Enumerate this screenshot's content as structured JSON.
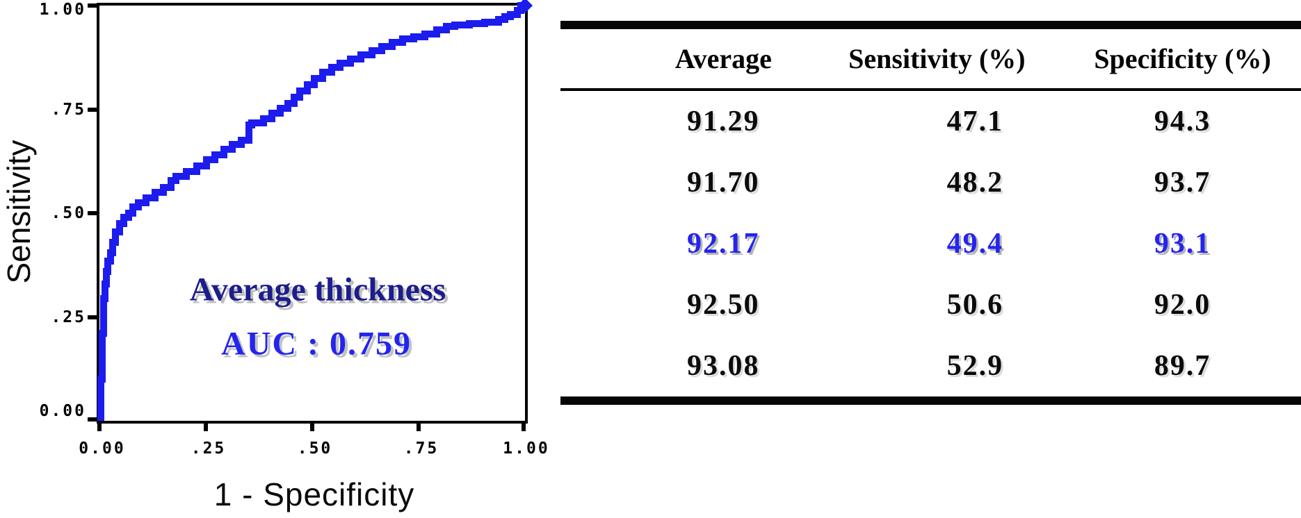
{
  "figure": {
    "background": "#ffffff"
  },
  "colors": {
    "curve": "#1c1cee",
    "annotation_title": "#1d1d8c",
    "annotation_auc": "#2424ef",
    "highlight_row": "#2424ee",
    "axis": "#000000",
    "table_text": "#0b0b0b"
  },
  "chart_data": {
    "type": "line",
    "subtype": "roc-curve",
    "title": "",
    "xlabel": "1 - Specificity",
    "ylabel": "Sensitivity",
    "xlim": [
      0,
      1
    ],
    "ylim": [
      0,
      1
    ],
    "grid": false,
    "legend": "none",
    "x_ticks": [
      "0.00",
      ".25",
      ".50",
      ".75",
      "1.00"
    ],
    "y_ticks": [
      "1.00",
      ".75",
      ".50",
      ".25",
      "0.00"
    ],
    "annotation": {
      "line1": "Average thickness",
      "line2": "AUC : 0.759",
      "auc": 0.759
    },
    "series": [
      {
        "name": "Average thickness ROC curve",
        "color": "#1c1cee",
        "points": [
          [
            0.004,
            0.0
          ],
          [
            0.004,
            0.06
          ],
          [
            0.007,
            0.1
          ],
          [
            0.007,
            0.16
          ],
          [
            0.01,
            0.21
          ],
          [
            0.01,
            0.26
          ],
          [
            0.013,
            0.295
          ],
          [
            0.016,
            0.33
          ],
          [
            0.02,
            0.36
          ],
          [
            0.026,
            0.385
          ],
          [
            0.031,
            0.405
          ],
          [
            0.038,
            0.43
          ],
          [
            0.048,
            0.455
          ],
          [
            0.058,
            0.475
          ],
          [
            0.068,
            0.49
          ],
          [
            0.078,
            0.5
          ],
          [
            0.092,
            0.515
          ],
          [
            0.11,
            0.525
          ],
          [
            0.13,
            0.537
          ],
          [
            0.15,
            0.55
          ],
          [
            0.168,
            0.562
          ],
          [
            0.18,
            0.578
          ],
          [
            0.205,
            0.588
          ],
          [
            0.228,
            0.6
          ],
          [
            0.252,
            0.614
          ],
          [
            0.272,
            0.628
          ],
          [
            0.292,
            0.641
          ],
          [
            0.312,
            0.654
          ],
          [
            0.333,
            0.665
          ],
          [
            0.352,
            0.675
          ],
          [
            0.358,
            0.712
          ],
          [
            0.385,
            0.718
          ],
          [
            0.405,
            0.728
          ],
          [
            0.425,
            0.74
          ],
          [
            0.443,
            0.752
          ],
          [
            0.458,
            0.765
          ],
          [
            0.47,
            0.78
          ],
          [
            0.488,
            0.795
          ],
          [
            0.505,
            0.81
          ],
          [
            0.525,
            0.825
          ],
          [
            0.545,
            0.84
          ],
          [
            0.565,
            0.852
          ],
          [
            0.59,
            0.862
          ],
          [
            0.615,
            0.872
          ],
          [
            0.64,
            0.882
          ],
          [
            0.663,
            0.892
          ],
          [
            0.688,
            0.902
          ],
          [
            0.712,
            0.912
          ],
          [
            0.738,
            0.92
          ],
          [
            0.765,
            0.925
          ],
          [
            0.792,
            0.932
          ],
          [
            0.815,
            0.942
          ],
          [
            0.835,
            0.95
          ],
          [
            0.87,
            0.953
          ],
          [
            0.905,
            0.956
          ],
          [
            0.938,
            0.96
          ],
          [
            0.952,
            0.967
          ],
          [
            0.966,
            0.973
          ],
          [
            0.982,
            0.978
          ],
          [
            0.99,
            0.988
          ],
          [
            1.0,
            1.0
          ]
        ]
      }
    ]
  },
  "table": {
    "headers": [
      "Average",
      "Sensitivity (%)",
      "Specificity (%)"
    ],
    "rows": [
      {
        "values": [
          "91.29",
          "47.1",
          "94.3"
        ],
        "highlighted": false
      },
      {
        "values": [
          "91.70",
          "48.2",
          "93.7"
        ],
        "highlighted": false
      },
      {
        "values": [
          "92.17",
          "49.4",
          "93.1"
        ],
        "highlighted": true
      },
      {
        "values": [
          "92.50",
          "50.6",
          "92.0"
        ],
        "highlighted": false
      },
      {
        "values": [
          "93.08",
          "52.9",
          "89.7"
        ],
        "highlighted": false
      }
    ]
  }
}
